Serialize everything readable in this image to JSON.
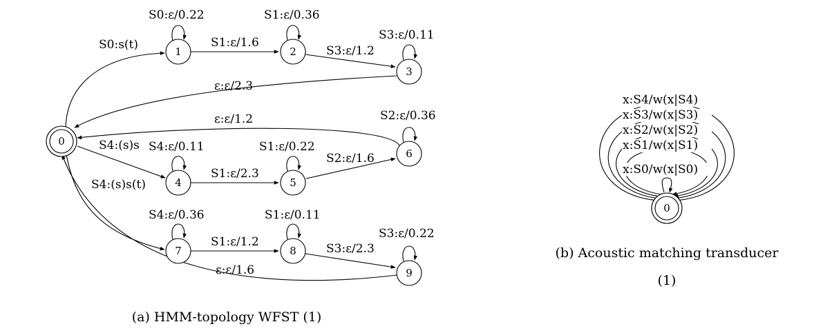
{
  "left_diagram": {
    "caption": "(a) HMM-topology WFST (1)",
    "states": {
      "s0": "0",
      "s1": "1",
      "s2": "2",
      "s3": "3",
      "s4": "4",
      "s5": "5",
      "s6": "6",
      "s7": "7",
      "s8": "8",
      "s9": "9"
    },
    "arcs": {
      "a0_1": "S0:s(t)",
      "a0_4": "S4:(s)s",
      "a0_7": "S4:(s)s(t)",
      "a1_1": "S0:ε/0.22",
      "a1_2": "S1:ε/1.6",
      "a2_2": "S1:ε/0.36",
      "a2_3": "S3:ε/1.2",
      "a3_3": "S3:ε/0.11",
      "a3_0": "ε:ε/2.3",
      "a4_4": "S4:ε/0.11",
      "a4_5": "S1:ε/2.3",
      "a5_5": "S1:ε/0.22",
      "a5_6": "S2:ε/1.6",
      "a6_6": "S2:ε/0.36",
      "a6_0": "ε:ε/1.2",
      "a7_7": "S4:ε/0.36",
      "a7_8": "S1:ε/1.2",
      "a8_8": "S1:ε/0.11",
      "a8_9": "S3:ε/2.3",
      "a9_9": "S3:ε/0.22",
      "a9_0": "ε:ε/1.6"
    }
  },
  "right_diagram": {
    "caption_line1": "(b) Acoustic matching transducer",
    "caption_line2": "(1)",
    "state": "0",
    "loops": [
      "x:S4/w(x|S4)",
      "x:S3/w(x|S3)",
      "x:S2/w(x|S2)",
      "x:S1/w(x|S1)",
      "x:S0/w(x|S0)"
    ]
  }
}
